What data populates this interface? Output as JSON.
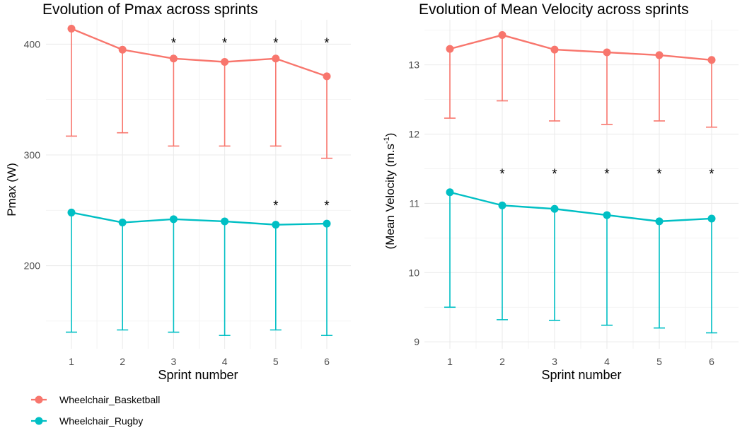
{
  "chart_data": [
    {
      "type": "line",
      "title": "Evolution of Pmax across sprints",
      "xlabel": "Sprint number",
      "ylabel": "Pmax (W)",
      "x": [
        1,
        2,
        3,
        4,
        5,
        6
      ],
      "x_ticks": [
        "1",
        "2",
        "3",
        "4",
        "5",
        "6"
      ],
      "ylim": [
        125,
        422
      ],
      "y_ticks": [
        200,
        300,
        400
      ],
      "y_tick_labels": [
        "200",
        "300",
        "400"
      ],
      "grid": true,
      "series": [
        {
          "name": "Wheelchair_Basketball",
          "values": [
            414,
            395,
            387,
            384,
            387,
            371
          ],
          "error_lower": [
            317,
            320,
            308,
            308,
            308,
            297
          ],
          "significance": [
            "",
            "",
            "*",
            "*",
            "*",
            "*"
          ]
        },
        {
          "name": "Wheelchair_Rugby",
          "values": [
            248,
            239,
            242,
            240,
            237,
            238
          ],
          "error_lower": [
            140,
            142,
            140,
            137,
            142,
            137
          ],
          "significance": [
            "",
            "",
            "",
            "",
            "*",
            "*"
          ]
        }
      ]
    },
    {
      "type": "line",
      "title": "Evolution of Mean Velocity across sprints",
      "xlabel": "Sprint number",
      "ylabel": "(Mean Velocity (m.s",
      "ylabel_superscript": "-1",
      "ylabel_suffix": ")",
      "x": [
        1,
        2,
        3,
        4,
        5,
        6
      ],
      "x_ticks": [
        "1",
        "2",
        "3",
        "4",
        "5",
        "6"
      ],
      "ylim": [
        8.9,
        13.65
      ],
      "y_ticks": [
        9,
        10,
        11,
        12,
        13
      ],
      "y_tick_labels": [
        "9",
        "10",
        "11",
        "12",
        "13"
      ],
      "grid": true,
      "series": [
        {
          "name": "Wheelchair_Basketball",
          "values": [
            13.23,
            13.43,
            13.22,
            13.18,
            13.14,
            13.07
          ],
          "error_lower": [
            12.23,
            12.48,
            12.19,
            12.14,
            12.19,
            12.1
          ],
          "significance": [
            "",
            "",
            "",
            "",
            "",
            ""
          ]
        },
        {
          "name": "Wheelchair_Rugby",
          "values": [
            11.16,
            10.97,
            10.92,
            10.83,
            10.74,
            10.78
          ],
          "error_lower": [
            9.5,
            9.32,
            9.31,
            9.24,
            9.2,
            9.13
          ],
          "significance": [
            "",
            "*",
            "*",
            "*",
            "*",
            "*"
          ]
        }
      ]
    }
  ],
  "legend": {
    "placement": "bottom-left",
    "items": [
      {
        "label": "Wheelchair_Basketball",
        "color": "#F8766D"
      },
      {
        "label": "Wheelchair_Rugby",
        "color": "#00BFC4"
      }
    ]
  },
  "colors": {
    "basketball": "#F8766D",
    "rugby": "#00BFC4",
    "grid": "#EBEBEB",
    "text": "#000000",
    "tick": "#4D4D4D"
  }
}
